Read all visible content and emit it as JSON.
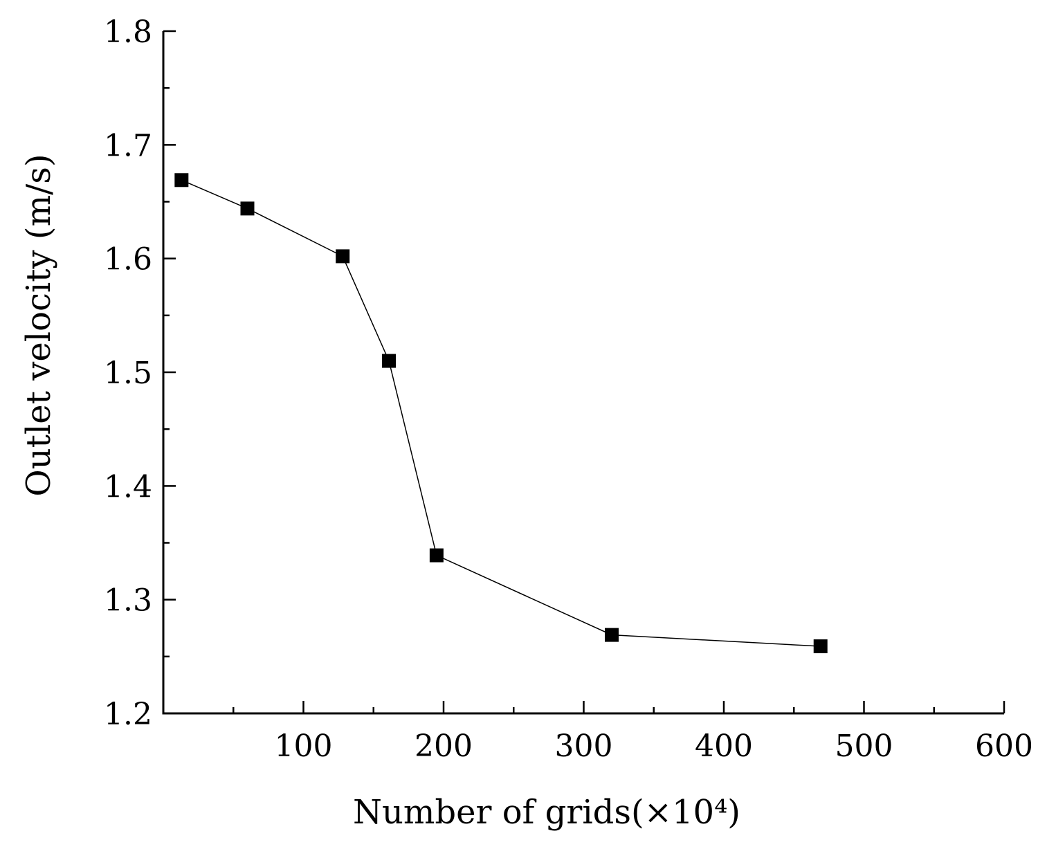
{
  "chart_data": {
    "type": "line",
    "title": "",
    "xlabel": "Number of grids(×10⁴)",
    "ylabel": "Outlet velocity (m/s)",
    "xlim": [
      0,
      600
    ],
    "ylim": [
      1.2,
      1.8
    ],
    "xticks": [
      100,
      200,
      300,
      400,
      500,
      600
    ],
    "xtick_labels": [
      "100",
      "200",
      "300",
      "400",
      "500",
      "600"
    ],
    "yticks": [
      1.2,
      1.3,
      1.4,
      1.5,
      1.6,
      1.7,
      1.8
    ],
    "ytick_labels": [
      "1.2",
      "1.3",
      "1.4",
      "1.5",
      "1.6",
      "1.7",
      "1.8"
    ],
    "x_minor_step": 50,
    "y_minor_step": 0.05,
    "grid": false,
    "series": [
      {
        "name": "Outlet velocity",
        "marker": "square",
        "color": "#000000",
        "x": [
          13,
          60,
          128,
          161,
          195,
          320,
          469
        ],
        "y": [
          1.669,
          1.644,
          1.602,
          1.51,
          1.339,
          1.269,
          1.259
        ]
      }
    ]
  }
}
